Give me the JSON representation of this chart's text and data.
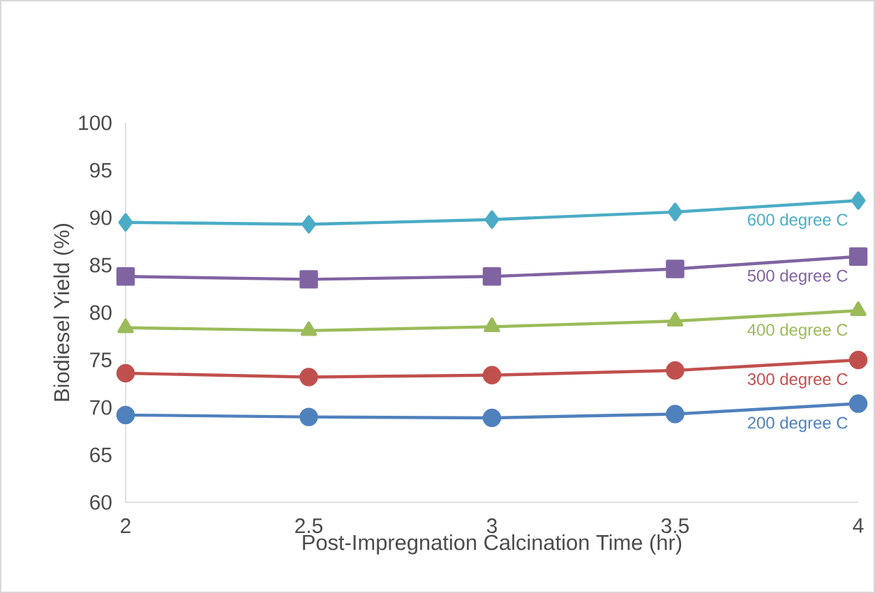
{
  "chart_data": {
    "type": "line",
    "xlabel": "Post-Impregnation Calcination Time (hr)",
    "ylabel": "Biodiesel Yield (%)",
    "x": [
      2,
      2.5,
      3,
      3.5,
      4
    ],
    "xlim": [
      2,
      4
    ],
    "xticks": [
      2,
      2.5,
      3,
      3.5,
      4
    ],
    "ylim": [
      60,
      100
    ],
    "yticks": [
      60,
      65,
      70,
      75,
      80,
      85,
      90,
      95,
      100
    ],
    "grid": false,
    "legend": false,
    "series": [
      {
        "name": "200 degree C",
        "color": "#4f81bd",
        "marker": "circle",
        "values": [
          69.2,
          69.0,
          68.9,
          69.3,
          70.4
        ]
      },
      {
        "name": "300 degree C",
        "color": "#c0504d",
        "marker": "circle",
        "values": [
          73.6,
          73.2,
          73.4,
          73.9,
          75.0
        ]
      },
      {
        "name": "400 degree C",
        "color": "#9bbb59",
        "marker": "triangle",
        "values": [
          78.4,
          78.1,
          78.5,
          79.1,
          80.2
        ]
      },
      {
        "name": "500 degree C",
        "color": "#8064a2",
        "marker": "square",
        "values": [
          83.8,
          83.5,
          83.8,
          84.6,
          85.9
        ]
      },
      {
        "name": "600 degree C",
        "color": "#4bacc6",
        "marker": "diamond",
        "values": [
          89.5,
          89.3,
          89.8,
          90.6,
          91.8
        ]
      }
    ]
  }
}
